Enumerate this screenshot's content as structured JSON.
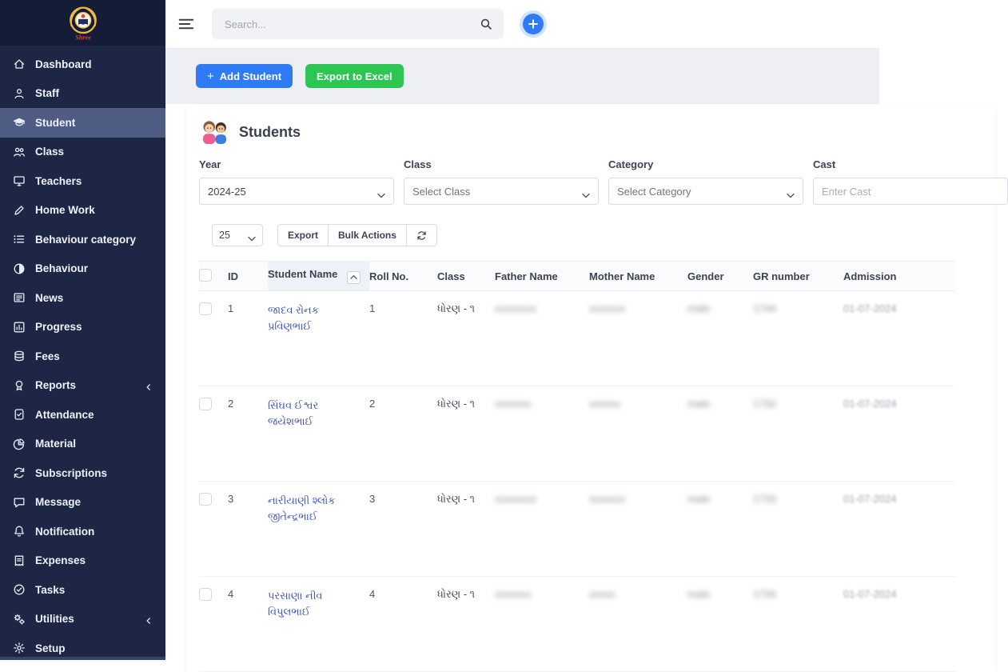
{
  "sidebar": {
    "logo_text": "Shree",
    "items": [
      {
        "label": "Dashboard",
        "icon": "home-icon"
      },
      {
        "label": "Staff",
        "icon": "person-icon"
      },
      {
        "label": "Student",
        "icon": "graduation-cap-icon",
        "active": true
      },
      {
        "label": "Class",
        "icon": "people-icon"
      },
      {
        "label": "Teachers",
        "icon": "monitor-icon"
      },
      {
        "label": "Home Work",
        "icon": "pen-icon"
      },
      {
        "label": "Behaviour category",
        "icon": "list-icon"
      },
      {
        "label": "Behaviour",
        "icon": "half-circle-icon"
      },
      {
        "label": "News",
        "icon": "newspaper-icon"
      },
      {
        "label": "Progress",
        "icon": "chart-icon"
      },
      {
        "label": "Fees",
        "icon": "coins-icon"
      },
      {
        "label": "Reports",
        "icon": "medal-icon",
        "chevron": true
      },
      {
        "label": "Attendance",
        "icon": "badge-check-icon"
      },
      {
        "label": "Material",
        "icon": "pie-icon"
      },
      {
        "label": "Subscriptions",
        "icon": "refresh-icon"
      },
      {
        "label": "Message",
        "icon": "chat-icon"
      },
      {
        "label": "Notification",
        "icon": "bell-icon"
      },
      {
        "label": "Expenses",
        "icon": "receipt-icon"
      },
      {
        "label": "Tasks",
        "icon": "task-check-icon"
      },
      {
        "label": "Utilities",
        "icon": "gears-icon",
        "chevron": true
      },
      {
        "label": "Setup",
        "icon": "gear-icon"
      }
    ]
  },
  "topbar": {
    "search_placeholder": "Search...",
    "icons": [
      "hamburger-icon",
      "search-icon",
      "plus-icon"
    ]
  },
  "actions": {
    "add_student": "Add Student",
    "export_excel": "Export to Excel"
  },
  "card": {
    "title": "Students",
    "filters": [
      {
        "label": "Year",
        "type": "select",
        "value": "2024-25"
      },
      {
        "label": "Class",
        "type": "select",
        "value": "Select Class"
      },
      {
        "label": "Category",
        "type": "select",
        "value": "Select Category"
      },
      {
        "label": "Cast",
        "type": "input",
        "placeholder": "Enter Cast"
      }
    ],
    "controls": {
      "page_size": "25",
      "export": "Export",
      "bulk_actions": "Bulk Actions",
      "refresh_icon": "refresh-icon"
    },
    "table": {
      "headers": [
        "ID",
        "Student Name",
        "Roll No.",
        "Class",
        "Father Name",
        "Mother Name",
        "Gender",
        "GR number",
        "Admission"
      ],
      "sort": {
        "column": "Student Name",
        "direction": "asc"
      },
      "blurred_columns": [
        "father_name",
        "mother_name",
        "gender",
        "gr_number",
        "admission"
      ],
      "rows": [
        {
          "id": "1",
          "student_name": "જાદવ રોનક પ્રવિણભાઈ",
          "roll_no": "1",
          "class": "ધોરણ - ૧",
          "father_name": "xxxxxxxx",
          "mother_name": "xxxxxxx",
          "gender": "male",
          "gr_number": "1744",
          "admission": "01-07-2024"
        },
        {
          "id": "2",
          "student_name": "સિંઘવ ઈશ્વર જયેશભાઈ",
          "roll_no": "2",
          "class": "ધોરણ - ૧",
          "father_name": "xxxxxxx",
          "mother_name": "xxxxxx",
          "gender": "male",
          "gr_number": "1732",
          "admission": "01-07-2024"
        },
        {
          "id": "3",
          "student_name": "નારીયાણી શ્લોક જીતેન્દ્રભાઈ",
          "roll_no": "3",
          "class": "ધોરણ - ૧",
          "father_name": "xxxxxxxx",
          "mother_name": "xxxxxxx",
          "gender": "male",
          "gr_number": "1733",
          "admission": "01-07-2024"
        },
        {
          "id": "4",
          "student_name": "પરસાણા નીવ વિપુલભાઈ",
          "roll_no": "4",
          "class": "ધોરણ - ૧",
          "father_name": "xxxxxxx",
          "mother_name": "xxxxx",
          "gender": "male",
          "gr_number": "1734",
          "admission": "01-07-2024"
        }
      ]
    }
  }
}
